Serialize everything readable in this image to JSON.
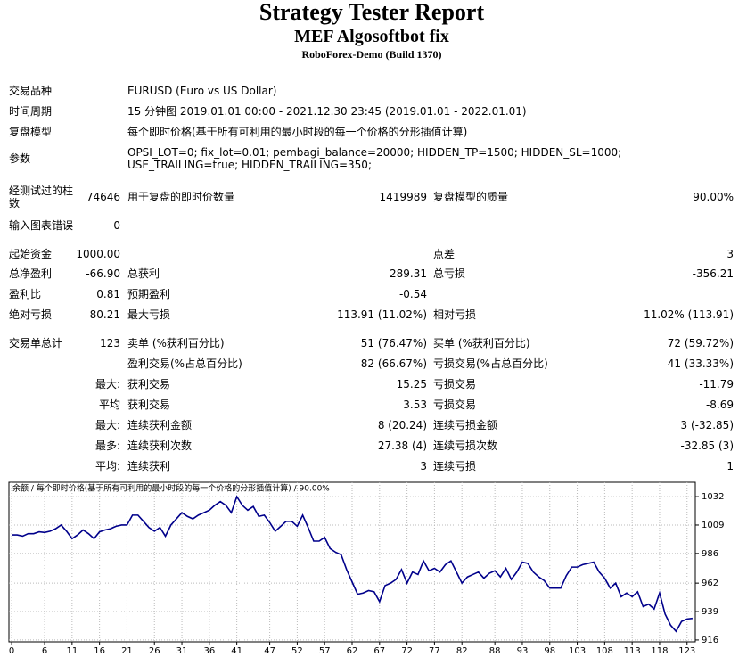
{
  "header": {
    "title": "Strategy Tester Report",
    "subtitle": "MEF Algosoftbot fix",
    "server": "RoboForex-Demo (Build 1370)"
  },
  "settings": {
    "rows": [
      {
        "label": "交易品种",
        "value": "EURUSD (Euro vs US Dollar)"
      },
      {
        "label": "时间周期",
        "value": "15 分钟图 2019.01.01 00:00 - 2021.12.30 23:45 (2019.01.01 - 2022.01.01)"
      },
      {
        "label": "复盘模型",
        "value": "每个即时价格(基于所有可利用的最小时段的每一个价格的分形插值计算)"
      },
      {
        "label": "参数",
        "value": "OPSI_LOT=0; fix_lot=0.01; pembagi_balance=20000; HIDDEN_TP=1500; HIDDEN_SL=1000; USE_TRAILING=true; HIDDEN_TRAILING=350;"
      }
    ]
  },
  "stats": {
    "rows": [
      [
        "经测试过的柱数",
        "74646",
        "用于复盘的即时价数量",
        "1419989",
        "复盘模型的质量",
        "90.00%"
      ],
      [
        "输入图表错误",
        "0",
        null,
        null,
        null,
        null
      ],
      [
        "起始资金",
        "1000.00",
        null,
        null,
        "点差",
        "3"
      ],
      [
        "总净盈利",
        "-66.90",
        "总获利",
        "289.31",
        "总亏损",
        "-356.21"
      ],
      [
        "盈利比",
        "0.81",
        "预期盈利",
        "-0.54",
        null,
        null
      ],
      [
        "绝对亏损",
        "80.21",
        "最大亏损",
        "113.91 (11.02%)",
        "相对亏损",
        "11.02% (113.91)"
      ],
      [
        "交易单总计",
        "123",
        "卖单 (%获利百分比)",
        "51 (76.47%)",
        "买单 (%获利百分比)",
        "72 (59.72%)"
      ],
      [
        null,
        null,
        "盈利交易(%占总百分比)",
        "82 (66.67%)",
        "亏损交易(%占总百分比)",
        "41 (33.33%)"
      ],
      [
        null,
        "最大:",
        "获利交易",
        "15.25",
        "亏损交易",
        "-11.79"
      ],
      [
        null,
        "平均",
        "获利交易",
        "3.53",
        "亏损交易",
        "-8.69"
      ],
      [
        null,
        "最大:",
        "连续获利金额",
        "8 (20.24)",
        "连续亏损金额",
        "3 (-32.85)"
      ],
      [
        null,
        "最多:",
        "连续获利次数",
        "27.38 (4)",
        "连续亏损次数",
        "-32.85 (3)"
      ],
      [
        null,
        "平均:",
        "连续获利",
        "3",
        "连续亏损",
        "1"
      ]
    ]
  },
  "chart_data": {
    "type": "line",
    "title": "余额 / 每个即时价格(基于所有可利用的最小时段的每一个价格的分形插值计算) / 90.00%",
    "color": "#00008b",
    "grid": true,
    "x": [
      0,
      1,
      2,
      3,
      4,
      5,
      6,
      7,
      8,
      9,
      10,
      11,
      12,
      13,
      14,
      15,
      16,
      17,
      18,
      19,
      20,
      21,
      22,
      23,
      24,
      25,
      26,
      27,
      28,
      29,
      30,
      31,
      32,
      33,
      34,
      35,
      36,
      37,
      38,
      39,
      40,
      41,
      42,
      43,
      44,
      45,
      46,
      47,
      48,
      49,
      50,
      51,
      52,
      53,
      54,
      55,
      56,
      57,
      58,
      59,
      60,
      61,
      62,
      63,
      64,
      65,
      66,
      67,
      68,
      69,
      70,
      71,
      72,
      73,
      74,
      75,
      76,
      77,
      78,
      79,
      80,
      81,
      82,
      83,
      84,
      85,
      86,
      87,
      88,
      89,
      90,
      91,
      92,
      93,
      94,
      95,
      96,
      97,
      98,
      99,
      100,
      101,
      102,
      103,
      104,
      105,
      106,
      107,
      108,
      109,
      110,
      111,
      112,
      113,
      114,
      115,
      116,
      117,
      118,
      119,
      120,
      121,
      122,
      123,
      124
    ],
    "values": [
      1001,
      1001,
      1000,
      1002,
      1002,
      1003.5,
      1003,
      1004,
      1006,
      1009,
      1004,
      998,
      1001,
      1005,
      1002,
      998,
      1003.5,
      1005,
      1006,
      1008,
      1009,
      1009,
      1017,
      1017,
      1012,
      1007,
      1004,
      1007,
      1000,
      1009,
      1014,
      1019,
      1016,
      1014,
      1017,
      1019,
      1021,
      1025,
      1028,
      1025,
      1019,
      1032,
      1025,
      1021,
      1024,
      1016,
      1017,
      1011,
      1004,
      1008,
      1012,
      1012,
      1008,
      1017,
      1007,
      996,
      996,
      999,
      990,
      987,
      985,
      973,
      963,
      953,
      954,
      956,
      955,
      947,
      960,
      962,
      965,
      973,
      962,
      971,
      969,
      980,
      972,
      974,
      971,
      977,
      980,
      971,
      962,
      967,
      969,
      971,
      966,
      970,
      972,
      967,
      974,
      965,
      971,
      979,
      978,
      971,
      967,
      964,
      958,
      958,
      958,
      968,
      975,
      975,
      977,
      978,
      979,
      971,
      966,
      958,
      962,
      951,
      954,
      951,
      955,
      943,
      945,
      941,
      954,
      937,
      928,
      923,
      931,
      933,
      933.5
    ],
    "xlim": [
      -0.5,
      124.5
    ],
    "xticks": [
      0,
      6,
      11,
      16,
      21,
      26,
      31,
      36,
      41,
      47,
      52,
      57,
      62,
      67,
      72,
      77,
      82,
      88,
      93,
      98,
      103,
      108,
      113,
      118,
      123
    ],
    "ylim": [
      914.5,
      1043.6
    ],
    "yticks": [
      916,
      939,
      962,
      986,
      1009,
      1032
    ]
  }
}
